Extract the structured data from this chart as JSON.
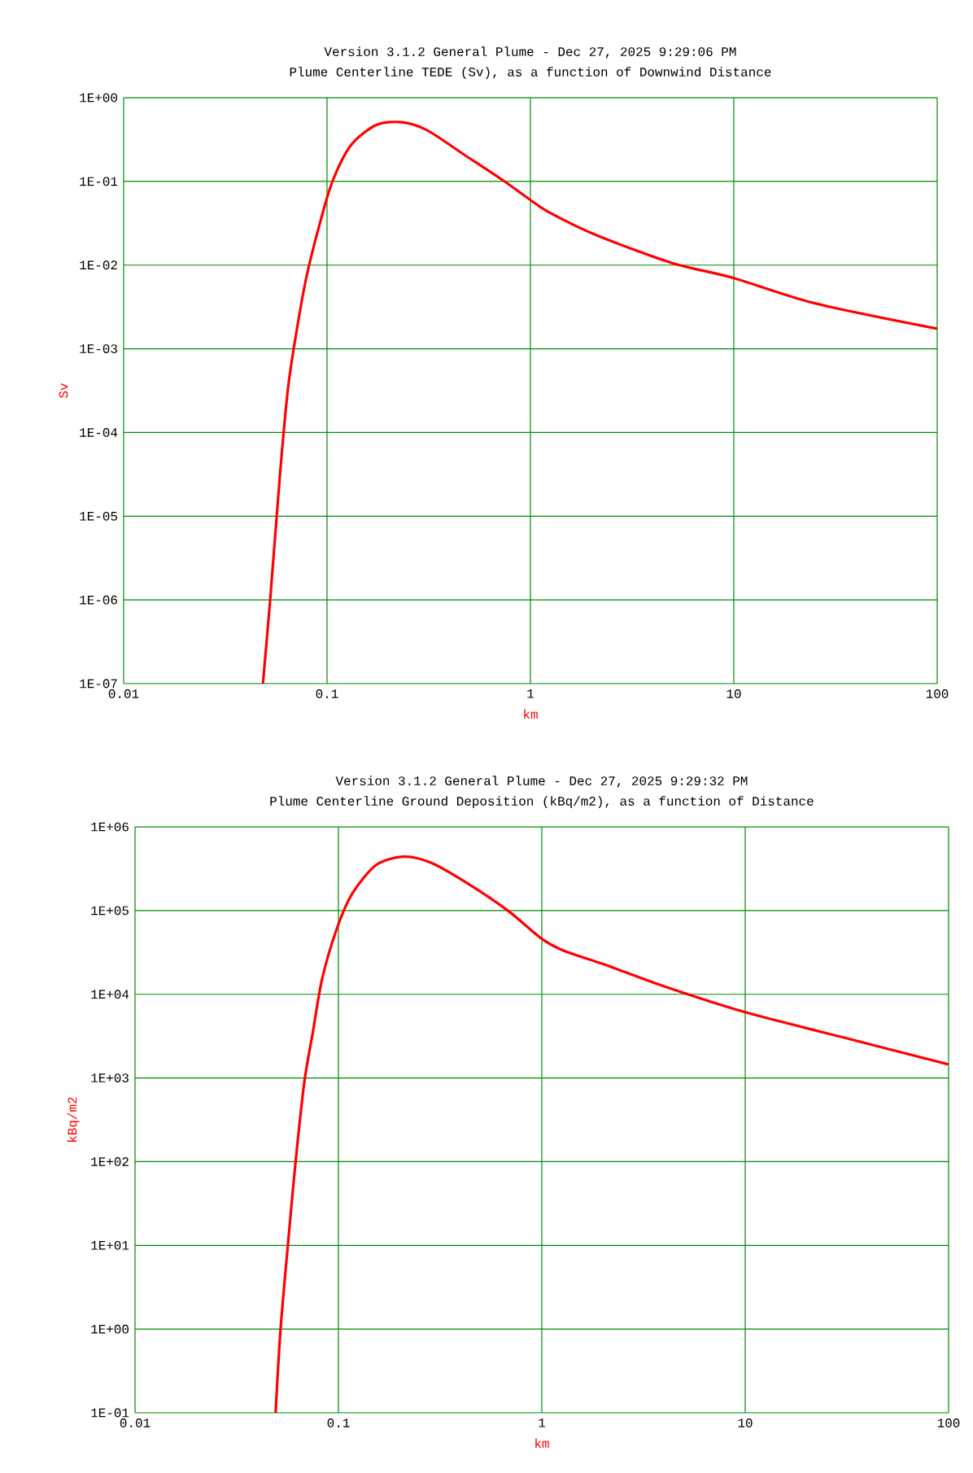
{
  "chart_data": [
    {
      "type": "line",
      "title": "Version 3.1.2 General Plume - Dec 27, 2025 9:29:06 PM",
      "subtitle": "Plume Centerline TEDE (Sv), as a function of Downwind Distance",
      "xlabel": "km",
      "ylabel": "Sv",
      "log": "xy",
      "grid": true,
      "marker": "none",
      "line_style": "solid",
      "xlim": [
        0.01,
        100
      ],
      "ylim": [
        1e-07,
        1
      ],
      "xticks": [
        0.01,
        0.1,
        1,
        10,
        100
      ],
      "yticks": [
        {
          "value": 1e-07,
          "label": "1E-07"
        },
        {
          "value": 1e-06,
          "label": "1E-06"
        },
        {
          "value": 1e-05,
          "label": "1E-05"
        },
        {
          "value": 0.0001,
          "label": "1E-04"
        },
        {
          "value": 0.001,
          "label": "1E-03"
        },
        {
          "value": 0.01,
          "label": "1E-02"
        },
        {
          "value": 0.1,
          "label": "1E-01"
        },
        {
          "value": 1,
          "label": "1E+00"
        }
      ],
      "x": [
        0.0484,
        0.0527,
        0.0588,
        0.0644,
        0.0716,
        0.0796,
        0.0917,
        0.106,
        0.131,
        0.174,
        0.232,
        0.31,
        0.47,
        0.72,
        1.0,
        1.23,
        2.09,
        4.9,
        10,
        25,
        100
      ],
      "series": [
        {
          "color": "#ff0000",
          "values": [
            1e-07,
            1.1e-06,
            3.3e-05,
            0.00035,
            0.0019,
            0.0076,
            0.03,
            0.098,
            0.27,
            0.47,
            0.51,
            0.41,
            0.21,
            0.106,
            0.06,
            0.043,
            0.023,
            0.0107,
            0.007,
            0.0035,
            0.00174
          ]
        }
      ]
    },
    {
      "type": "line",
      "title": "Version 3.1.2 General Plume - Dec 27, 2025 9:29:32 PM",
      "subtitle": "Plume Centerline Ground Deposition (kBq/m2), as a function of Distance",
      "xlabel": "km",
      "ylabel": "kBq/m2",
      "log": "xy",
      "grid": true,
      "marker": "none",
      "line_style": "solid",
      "xlim": [
        0.01,
        100
      ],
      "ylim": [
        0.1,
        1000000
      ],
      "xticks": [
        0.01,
        0.1,
        1,
        10,
        100
      ],
      "yticks": [
        {
          "value": 0.1,
          "label": "1E-01"
        },
        {
          "value": 1,
          "label": "1E+00"
        },
        {
          "value": 10,
          "label": "1E+01"
        },
        {
          "value": 100,
          "label": "1E+02"
        },
        {
          "value": 1000,
          "label": "1E+03"
        },
        {
          "value": 10000,
          "label": "1E+04"
        },
        {
          "value": 100000,
          "label": "1E+05"
        },
        {
          "value": 1000000,
          "label": "1E+06"
        }
      ],
      "x": [
        0.0491,
        0.0519,
        0.0563,
        0.0614,
        0.068,
        0.075,
        0.083,
        0.098,
        0.117,
        0.153,
        0.207,
        0.28,
        0.42,
        0.68,
        1.0,
        1.29,
        2.0,
        3.97,
        10,
        29.6,
        100
      ],
      "series": [
        {
          "color": "#ff0000",
          "values": [
            0.1,
            0.98,
            9.5,
            93,
            900,
            3600,
            15000,
            60000,
            160000,
            350000,
            440000,
            380000,
            220000,
            100000,
            46000,
            33000,
            23000,
            12500,
            6100,
            3100,
            1450
          ]
        }
      ]
    }
  ]
}
